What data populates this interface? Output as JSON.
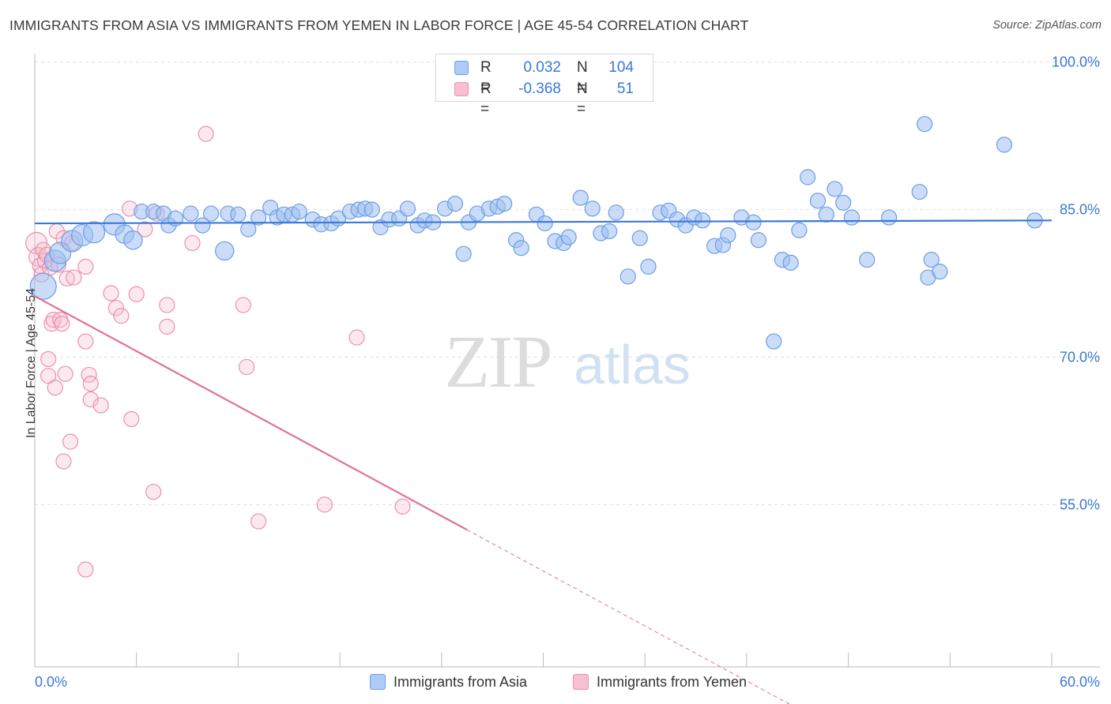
{
  "title": "IMMIGRANTS FROM ASIA VS IMMIGRANTS FROM YEMEN IN LABOR FORCE | AGE 45-54 CORRELATION CHART",
  "source": "Source: ZipAtlas.com",
  "watermark": {
    "part1": "ZIP",
    "part2": "atlas"
  },
  "stats_box": {
    "rows": [
      {
        "r_label": "R =",
        "r_value": "0.032",
        "n_label": "N =",
        "n_value": "104",
        "fill": "#aecbf5",
        "stroke": "#6b9ee6"
      },
      {
        "r_label": "R =",
        "r_value": "-0.368",
        "n_label": "N =",
        "n_value": "51",
        "fill": "#f7c0d1",
        "stroke": "#ec8fad"
      }
    ]
  },
  "legend": [
    {
      "label": "Immigrants from Asia",
      "fill": "#aecbf5",
      "stroke": "#6b9ee6"
    },
    {
      "label": "Immigrants from Yemen",
      "fill": "#f7c0d1",
      "stroke": "#ec8fad"
    }
  ],
  "colors": {
    "blue": "#3b78d8",
    "pink": "#e0719a",
    "grid": "#e0e0e0",
    "axis": "#bbbbbb",
    "tick_text": "#3b78d8"
  },
  "chart_data": {
    "type": "scatter",
    "title": "IMMIGRANTS FROM ASIA VS IMMIGRANTS FROM YEMEN IN LABOR FORCE | AGE 45-54 CORRELATION CHART",
    "xlabel": "",
    "ylabel": "In Labor Force | Age 45-54",
    "xlim": [
      0,
      60
    ],
    "ylim": [
      38.5,
      101.5
    ],
    "x_tick_labels": [
      "0.0%",
      "60.0%"
    ],
    "y_ticks": [
      55,
      70,
      85,
      100
    ],
    "y_tick_labels": [
      "55.0%",
      "70.0%",
      "85.0%",
      "100.0%"
    ],
    "grid": true,
    "legend_position": "bottom-center",
    "series": [
      {
        "name": "Immigrants from Asia",
        "color": "#6b9ee6",
        "trend": {
          "x0": 0,
          "y0": 83.6,
          "x1": 60,
          "y1": 83.9,
          "dashed_from": null
        },
        "points": [
          [
            0.5,
            77.2,
            3
          ],
          [
            1.2,
            79.8,
            2
          ],
          [
            1.5,
            80.6,
            2
          ],
          [
            2.2,
            81.8,
            2
          ],
          [
            2.8,
            82.4,
            2
          ],
          [
            3.5,
            82.7,
            2
          ],
          [
            4.7,
            83.5,
            2
          ],
          [
            5.3,
            82.5,
            1.5
          ],
          [
            5.8,
            81.9,
            1.5
          ],
          [
            6.3,
            84.8,
            1
          ],
          [
            7.0,
            84.8,
            1
          ],
          [
            7.6,
            84.6,
            1
          ],
          [
            7.9,
            83.4,
            1
          ],
          [
            8.3,
            84.1,
            1
          ],
          [
            9.2,
            84.6,
            1
          ],
          [
            9.9,
            83.4,
            1
          ],
          [
            10.4,
            84.6,
            1
          ],
          [
            11.2,
            80.8,
            1.5
          ],
          [
            11.4,
            84.6,
            1
          ],
          [
            12.0,
            84.5,
            1
          ],
          [
            12.6,
            83.0,
            1
          ],
          [
            13.2,
            84.2,
            1
          ],
          [
            13.9,
            85.2,
            1
          ],
          [
            14.3,
            84.2,
            1
          ],
          [
            14.7,
            84.5,
            1
          ],
          [
            15.2,
            84.5,
            1
          ],
          [
            15.6,
            84.8,
            1
          ],
          [
            16.4,
            84.0,
            1
          ],
          [
            16.9,
            83.5,
            1
          ],
          [
            17.5,
            83.6,
            1
          ],
          [
            17.9,
            84.1,
            1
          ],
          [
            18.6,
            84.8,
            1
          ],
          [
            19.1,
            85.0,
            1
          ],
          [
            19.5,
            85.1,
            1
          ],
          [
            19.9,
            85.0,
            1
          ],
          [
            20.4,
            83.2,
            1
          ],
          [
            20.9,
            84.0,
            1
          ],
          [
            21.5,
            84.1,
            1
          ],
          [
            22.0,
            85.1,
            1
          ],
          [
            22.6,
            83.4,
            1
          ],
          [
            23.0,
            83.9,
            1
          ],
          [
            23.5,
            83.7,
            1
          ],
          [
            24.2,
            85.1,
            1
          ],
          [
            24.8,
            85.6,
            1
          ],
          [
            25.3,
            80.5,
            1
          ],
          [
            25.6,
            83.7,
            1
          ],
          [
            26.1,
            84.6,
            1
          ],
          [
            26.8,
            85.1,
            1
          ],
          [
            27.3,
            85.3,
            1
          ],
          [
            27.7,
            85.6,
            1
          ],
          [
            28.4,
            81.9,
            1
          ],
          [
            28.7,
            81.1,
            1
          ],
          [
            29.6,
            84.5,
            1
          ],
          [
            30.1,
            83.6,
            1
          ],
          [
            30.7,
            81.8,
            1
          ],
          [
            31.2,
            81.6,
            1
          ],
          [
            31.5,
            82.2,
            1
          ],
          [
            32.2,
            86.2,
            1
          ],
          [
            32.9,
            85.1,
            1
          ],
          [
            33.4,
            82.6,
            1
          ],
          [
            33.9,
            82.8,
            1
          ],
          [
            34.3,
            84.7,
            1
          ],
          [
            35.0,
            78.2,
            1
          ],
          [
            35.7,
            82.1,
            1
          ],
          [
            36.2,
            79.2,
            1
          ],
          [
            36.9,
            84.7,
            1
          ],
          [
            37.4,
            84.9,
            1
          ],
          [
            37.9,
            84.0,
            1
          ],
          [
            38.4,
            83.4,
            1
          ],
          [
            38.9,
            84.2,
            1
          ],
          [
            39.4,
            83.9,
            1
          ],
          [
            40.1,
            81.3,
            1
          ],
          [
            40.6,
            81.4,
            1
          ],
          [
            40.9,
            82.4,
            1
          ],
          [
            41.7,
            84.2,
            1
          ],
          [
            42.4,
            83.7,
            1
          ],
          [
            42.7,
            81.9,
            1
          ],
          [
            43.6,
            71.6,
            1
          ],
          [
            44.1,
            79.9,
            1
          ],
          [
            44.6,
            79.6,
            1
          ],
          [
            45.1,
            82.9,
            1
          ],
          [
            45.6,
            88.3,
            1
          ],
          [
            46.2,
            85.9,
            1
          ],
          [
            46.7,
            84.5,
            1
          ],
          [
            47.2,
            87.1,
            1
          ],
          [
            47.7,
            85.7,
            1
          ],
          [
            48.2,
            84.2,
            1
          ],
          [
            49.1,
            79.9,
            1
          ],
          [
            50.4,
            84.2,
            1
          ],
          [
            52.2,
            86.8,
            1
          ],
          [
            52.7,
            78.1,
            1
          ],
          [
            52.9,
            79.9,
            1
          ],
          [
            53.4,
            78.7,
            1
          ],
          [
            52.5,
            93.7,
            1
          ],
          [
            57.2,
            91.6,
            1
          ],
          [
            59.0,
            83.9,
            1
          ]
        ]
      },
      {
        "name": "Immigrants from Yemen",
        "color": "#ec8fad",
        "trend": {
          "x0": 0,
          "y0": 76.2,
          "x1": 60,
          "y1": 20.3,
          "solid_to_x": 25.5
        },
        "points": [
          [
            0.1,
            81.6,
            2
          ],
          [
            0.2,
            80.2,
            1.5
          ],
          [
            0.3,
            79.3,
            1
          ],
          [
            0.4,
            78.4,
            1
          ],
          [
            0.5,
            80.9,
            1
          ],
          [
            0.6,
            79.8,
            1
          ],
          [
            0.7,
            80.4,
            1
          ],
          [
            0.9,
            79.1,
            1
          ],
          [
            1.0,
            73.4,
            1
          ],
          [
            1.1,
            73.8,
            1
          ],
          [
            0.8,
            69.8,
            1
          ],
          [
            0.8,
            68.1,
            1
          ],
          [
            1.2,
            66.9,
            1
          ],
          [
            1.4,
            79.4,
            1
          ],
          [
            1.3,
            82.8,
            1
          ],
          [
            1.5,
            73.8,
            1
          ],
          [
            1.6,
            73.4,
            1
          ],
          [
            1.7,
            82.1,
            1
          ],
          [
            1.8,
            68.3,
            1
          ],
          [
            1.9,
            78.0,
            1
          ],
          [
            2.2,
            81.6,
            1
          ],
          [
            2.3,
            78.1,
            1
          ],
          [
            2.1,
            61.4,
            1
          ],
          [
            1.7,
            59.4,
            1
          ],
          [
            3.0,
            71.6,
            1
          ],
          [
            3.0,
            79.2,
            1
          ],
          [
            3.2,
            68.2,
            1
          ],
          [
            3.3,
            67.3,
            1
          ],
          [
            3.3,
            65.7,
            1
          ],
          [
            3.9,
            65.1,
            1
          ],
          [
            4.5,
            76.5,
            1
          ],
          [
            4.8,
            75.0,
            1
          ],
          [
            5.1,
            74.2,
            1
          ],
          [
            5.7,
            63.7,
            1
          ],
          [
            6.0,
            76.4,
            1
          ],
          [
            5.6,
            85.1,
            1
          ],
          [
            7.2,
            84.6,
            1
          ],
          [
            7.8,
            75.3,
            1
          ],
          [
            7.8,
            73.1,
            1
          ],
          [
            9.3,
            81.6,
            1
          ],
          [
            10.1,
            92.7,
            1
          ],
          [
            7.0,
            56.3,
            1
          ],
          [
            12.3,
            75.3,
            1
          ],
          [
            12.5,
            69.0,
            1
          ],
          [
            13.2,
            53.3,
            1
          ],
          [
            3.0,
            48.4,
            1
          ],
          [
            17.1,
            55.0,
            1
          ],
          [
            19.0,
            72.0,
            1
          ],
          [
            21.7,
            54.8,
            1
          ],
          [
            6.5,
            83.0,
            1
          ]
        ]
      }
    ]
  }
}
